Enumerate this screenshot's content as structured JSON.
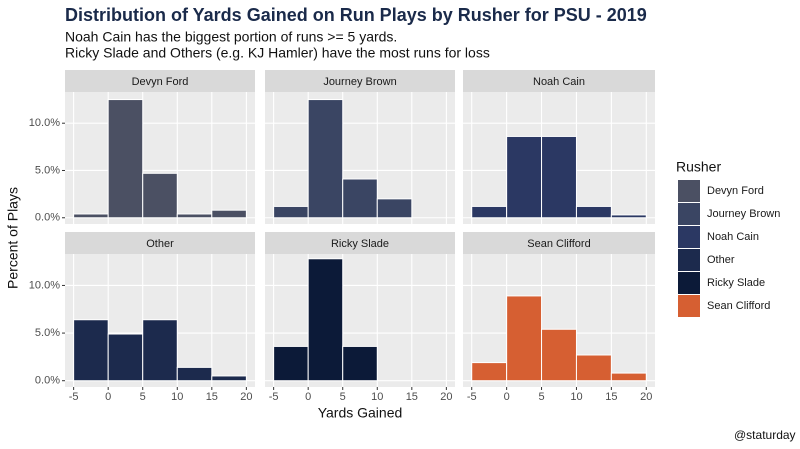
{
  "chart_data": {
    "type": "histogram",
    "title": "Distribution of Yards Gained on Run Plays by Rusher for PSU - 2019",
    "subtitle": [
      "Noah Cain has the biggest portion of runs >= 5 yards.",
      "Ricky Slade and Others (e.g. KJ Hamler) have the most runs for loss"
    ],
    "xlabel": "Yards Gained",
    "ylabel": "Percent of Plays",
    "legend_title": "Rusher",
    "caption": "@staturday",
    "bins": [
      -5,
      0,
      5,
      10,
      15,
      20
    ],
    "xlim": [
      -6.25,
      21.25
    ],
    "xticks": [
      -5,
      0,
      5,
      10,
      15,
      20
    ],
    "ylim": [
      -0.66,
      13.3
    ],
    "yticks": [
      {
        "value": 0,
        "label": "0.0%"
      },
      {
        "value": 5,
        "label": "5.0%"
      },
      {
        "value": 10,
        "label": "10.0%"
      }
    ],
    "grid": true,
    "series": [
      {
        "name": "Devyn Ford",
        "color": "#4b5063",
        "values": [
          0.4,
          12.5,
          4.7,
          0.4,
          0.8
        ]
      },
      {
        "name": "Journey Brown",
        "color": "#3a4563",
        "values": [
          1.2,
          12.5,
          4.1,
          2.0,
          0
        ]
      },
      {
        "name": "Noah Cain",
        "color": "#2b3863",
        "values": [
          1.2,
          8.6,
          8.6,
          1.2,
          0.3
        ]
      },
      {
        "name": "Other",
        "color": "#1c2a4d",
        "values": [
          6.4,
          4.9,
          6.4,
          1.4,
          0.5
        ]
      },
      {
        "name": "Ricky Slade",
        "color": "#0c1a38",
        "values": [
          3.6,
          12.8,
          3.6,
          0,
          0
        ]
      },
      {
        "name": "Sean Clifford",
        "color": "#d65f32",
        "values": [
          1.9,
          8.9,
          5.4,
          2.7,
          0.8
        ]
      }
    ]
  }
}
